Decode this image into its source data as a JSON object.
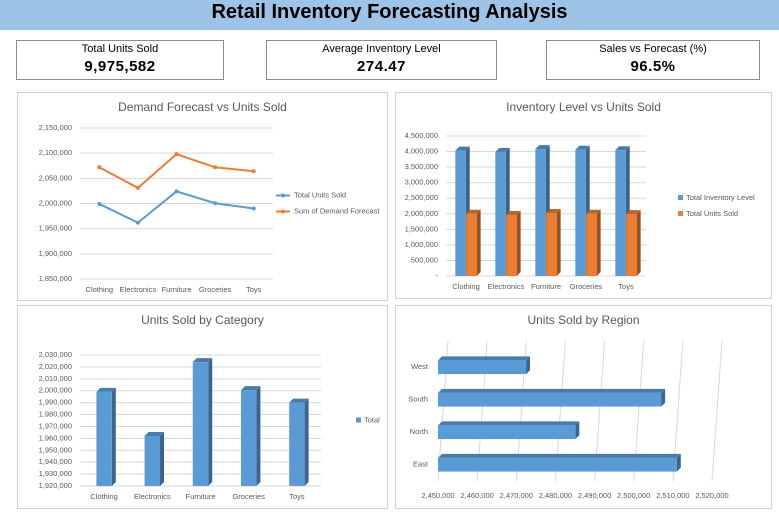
{
  "header": {
    "title": "Retail Inventory Forecasting Analysis"
  },
  "kpis": [
    {
      "label": "Total Units Sold",
      "value": "9,975,582"
    },
    {
      "label": "Average Inventory Level",
      "value": "274.47"
    },
    {
      "label": "Sales vs Forecast (%)",
      "value": "96.5%"
    }
  ],
  "chart_data": [
    {
      "type": "line",
      "title": "Demand Forecast vs Units Sold",
      "categories": [
        "Clothing",
        "Electronics",
        "Furniture",
        "Groceries",
        "Toys"
      ],
      "series": [
        {
          "name": "Total Units Sold",
          "color": "#5b9bd5",
          "values": [
            1999086,
            1962000,
            2024000,
            2000500,
            1989996
          ]
        },
        {
          "name": "Sum of Demand Forecast",
          "color": "#ed7d31",
          "values": [
            2072000,
            2031000,
            2098000,
            2072000,
            2064000
          ]
        }
      ],
      "ylim": [
        1850000,
        2150000
      ],
      "yticks": [
        {
          "value": 1850000,
          "label": "1,850,000"
        },
        {
          "value": 1900000,
          "label": "1,900,000"
        },
        {
          "value": 1950000,
          "label": "1,950,000"
        },
        {
          "value": 2000000,
          "label": "2,000,000"
        },
        {
          "value": 2050000,
          "label": "2,050,000"
        },
        {
          "value": 2100000,
          "label": "2,100,000"
        },
        {
          "value": 2150000,
          "label": "2,150,000"
        }
      ],
      "grid": true,
      "legend": "right"
    },
    {
      "type": "bar",
      "title": "Inventory Level vs Units Sold",
      "categories": [
        "Clothing",
        "Electronics",
        "Furniture",
        "Groceries",
        "Toys"
      ],
      "series": [
        {
          "name": "Total Inventory Level",
          "color": "#5b9bd5",
          "values": [
            4030000,
            3990000,
            4080000,
            4060000,
            4040000
          ]
        },
        {
          "name": "Total Units Sold",
          "color": "#ed7d31",
          "values": [
            1999086,
            1962000,
            2024000,
            2000500,
            1989996
          ]
        }
      ],
      "ylim": [
        0,
        4500000
      ],
      "yticks": [
        {
          "value": 0,
          "label": "-"
        },
        {
          "value": 500000,
          "label": "500,000"
        },
        {
          "value": 1000000,
          "label": "1,000,000"
        },
        {
          "value": 1500000,
          "label": "1,500,000"
        },
        {
          "value": 2000000,
          "label": "2,000,000"
        },
        {
          "value": 2500000,
          "label": "2,500,000"
        },
        {
          "value": 3000000,
          "label": "3,000,000"
        },
        {
          "value": 3500000,
          "label": "3,500,000"
        },
        {
          "value": 4000000,
          "label": "4,000,000"
        },
        {
          "value": 4500000,
          "label": "4,500,000"
        }
      ],
      "grid": true,
      "legend": "right"
    },
    {
      "type": "bar",
      "title": "Units Sold by Category",
      "categories": [
        "Clothing",
        "Electronics",
        "Furniture",
        "Groceries",
        "Toys"
      ],
      "series": [
        {
          "name": "Total",
          "color": "#5b9bd5",
          "values": [
            1999086,
            1962000,
            2024000,
            2000500,
            1989996
          ]
        }
      ],
      "ylim": [
        1920000,
        2030000
      ],
      "yticks": [
        {
          "value": 1920000,
          "label": "1,920,000"
        },
        {
          "value": 1930000,
          "label": "1,930,000"
        },
        {
          "value": 1940000,
          "label": "1,940,000"
        },
        {
          "value": 1950000,
          "label": "1,950,000"
        },
        {
          "value": 1960000,
          "label": "1,960,000"
        },
        {
          "value": 1970000,
          "label": "1,970,000"
        },
        {
          "value": 1980000,
          "label": "1,980,000"
        },
        {
          "value": 1990000,
          "label": "1,990,000"
        },
        {
          "value": 2000000,
          "label": "2,000,000"
        },
        {
          "value": 2010000,
          "label": "2,010,000"
        },
        {
          "value": 2020000,
          "label": "2,020,000"
        },
        {
          "value": 2030000,
          "label": "2,030,000"
        }
      ],
      "grid": true,
      "legend": "right"
    },
    {
      "type": "barh",
      "title": "Units Sold by Region",
      "categories": [
        "East",
        "North",
        "South",
        "West"
      ],
      "series": [
        {
          "name": "Total",
          "color": "#5b9bd5",
          "values": [
            2511000,
            2485082,
            2507000,
            2472500
          ]
        }
      ],
      "xlim": [
        2450000,
        2520000
      ],
      "xticks": [
        {
          "value": 2450000,
          "label": "2,450,000"
        },
        {
          "value": 2460000,
          "label": "2,460,000"
        },
        {
          "value": 2470000,
          "label": "2,470,000"
        },
        {
          "value": 2480000,
          "label": "2,480,000"
        },
        {
          "value": 2490000,
          "label": "2,490,000"
        },
        {
          "value": 2500000,
          "label": "2,500,000"
        },
        {
          "value": 2510000,
          "label": "2,510,000"
        },
        {
          "value": 2520000,
          "label": "2,520,000"
        }
      ],
      "grid": true
    }
  ]
}
